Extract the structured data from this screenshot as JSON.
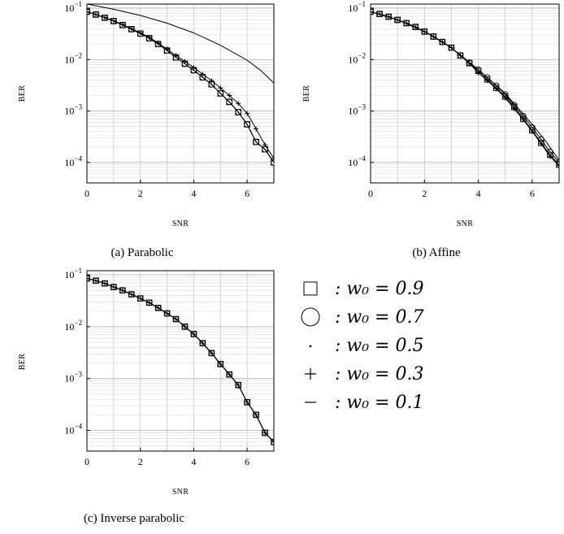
{
  "chart_data": [
    {
      "type": "line",
      "caption": "(a) Parabolic",
      "xlabel": "SNR",
      "ylabel": "BER",
      "xlim": [
        0,
        7
      ],
      "ylim": [
        4e-05,
        0.12
      ],
      "yscale": "log",
      "grid": true,
      "xticks": [
        "0",
        "2",
        "4",
        "6"
      ],
      "series": [
        {
          "name": "w0 = 0.9",
          "marker": "square",
          "x": [
            0,
            0.333,
            0.667,
            1,
            1.333,
            1.667,
            2,
            2.333,
            2.667,
            3,
            3.333,
            3.667,
            4,
            4.333,
            4.667,
            5,
            5.333,
            5.667,
            6,
            6.333,
            6.667,
            7
          ],
          "y": [
            0.085,
            0.075,
            0.065,
            0.056,
            0.047,
            0.039,
            0.032,
            0.026,
            0.02,
            0.015,
            0.011,
            0.0083,
            0.0062,
            0.0045,
            0.0033,
            0.0022,
            0.0015,
            0.00095,
            0.00055,
            0.00025,
            0.00018,
            0.0001
          ]
        },
        {
          "name": "w0 = 0.7",
          "marker": "circle",
          "x": [
            0,
            0.333,
            0.667,
            1,
            1.333,
            1.667,
            2,
            2.333,
            2.667,
            3,
            3.333,
            3.667,
            4,
            4.333,
            4.667,
            5,
            5.333,
            5.667,
            6,
            6.333,
            6.667,
            7
          ],
          "y": [
            0.085,
            0.075,
            0.065,
            0.056,
            0.047,
            0.039,
            0.032,
            0.026,
            0.02,
            0.015,
            0.011,
            0.0083,
            0.0062,
            0.0045,
            0.0033,
            0.0022,
            0.0015,
            0.00095,
            0.00055,
            0.00025,
            0.00018,
            0.0001
          ]
        },
        {
          "name": "w0 = 0.5",
          "marker": "dot",
          "x": [
            0,
            0.333,
            0.667,
            1,
            1.333,
            1.667,
            2,
            2.333,
            2.667,
            3,
            3.333,
            3.667,
            4,
            4.333,
            4.667,
            5,
            5.333,
            5.667,
            6,
            6.333,
            6.667,
            7
          ],
          "y": [
            0.085,
            0.075,
            0.065,
            0.056,
            0.047,
            0.039,
            0.032,
            0.026,
            0.02,
            0.015,
            0.011,
            0.0083,
            0.0062,
            0.0045,
            0.0033,
            0.0022,
            0.0015,
            0.00095,
            0.00055,
            0.00025,
            0.00018,
            0.0001
          ]
        },
        {
          "name": "w0 = 0.3",
          "marker": "plus",
          "x": [
            0,
            0.333,
            0.667,
            1,
            1.333,
            1.667,
            2,
            2.333,
            2.667,
            3,
            3.333,
            3.667,
            4,
            4.333,
            4.667,
            5,
            5.333,
            5.667,
            6,
            6.333,
            6.667,
            7
          ],
          "y": [
            0.085,
            0.075,
            0.066,
            0.057,
            0.048,
            0.04,
            0.033,
            0.027,
            0.021,
            0.016,
            0.012,
            0.0092,
            0.007,
            0.0052,
            0.0039,
            0.0028,
            0.002,
            0.0014,
            0.0009,
            0.00045,
            0.00022,
            0.00012
          ]
        },
        {
          "name": "w0 = 0.1",
          "marker": "none",
          "x": [
            0,
            1,
            2,
            3,
            4,
            5,
            6,
            6.5,
            7
          ],
          "y": [
            0.12,
            0.095,
            0.072,
            0.051,
            0.033,
            0.019,
            0.0097,
            0.0062,
            0.0035
          ]
        }
      ]
    },
    {
      "type": "line",
      "caption": "(b) Affine",
      "xlabel": "SNR",
      "ylabel": "BER",
      "xlim": [
        0,
        7
      ],
      "ylim": [
        4e-05,
        0.12
      ],
      "yscale": "log",
      "grid": true,
      "xticks": [
        "0",
        "2",
        "4",
        "6"
      ],
      "series": [
        {
          "name": "w0 = 0.9",
          "marker": "square",
          "x": [
            0,
            0.333,
            0.667,
            1,
            1.333,
            1.667,
            2,
            2.333,
            2.667,
            3,
            3.333,
            3.667,
            4,
            4.333,
            4.667,
            5,
            5.333,
            5.667,
            6,
            6.333,
            6.667,
            7
          ],
          "y": [
            0.085,
            0.077,
            0.068,
            0.059,
            0.051,
            0.043,
            0.035,
            0.028,
            0.022,
            0.017,
            0.012,
            0.0085,
            0.006,
            0.0041,
            0.0028,
            0.0019,
            0.0012,
            0.0007,
            0.00042,
            0.00024,
            0.00014,
            9e-05
          ]
        },
        {
          "name": "w0 = 0.7",
          "marker": "circle",
          "x": [
            0,
            0.333,
            0.667,
            1,
            1.333,
            1.667,
            2,
            2.333,
            2.667,
            3,
            3.333,
            3.667,
            4,
            4.333,
            4.667,
            5,
            5.333,
            5.667,
            6,
            6.333,
            6.667,
            7
          ],
          "y": [
            0.085,
            0.077,
            0.068,
            0.059,
            0.051,
            0.043,
            0.035,
            0.028,
            0.022,
            0.017,
            0.012,
            0.0087,
            0.0064,
            0.0045,
            0.0031,
            0.0021,
            0.0013,
            0.0008,
            0.00048,
            0.00028,
            0.00016,
            0.0001
          ]
        },
        {
          "name": "w0 = 0.5",
          "marker": "dot",
          "x": [
            0,
            0.333,
            0.667,
            1,
            1.333,
            1.667,
            2,
            2.333,
            2.667,
            3,
            3.333,
            3.667,
            4,
            4.333,
            4.667,
            5,
            5.333,
            5.667,
            6,
            6.333,
            6.667,
            7
          ],
          "y": [
            0.085,
            0.077,
            0.068,
            0.059,
            0.051,
            0.043,
            0.035,
            0.028,
            0.022,
            0.017,
            0.012,
            0.0085,
            0.006,
            0.0041,
            0.0028,
            0.0019,
            0.0012,
            0.0007,
            0.00042,
            0.00024,
            0.00014,
            9e-05
          ]
        },
        {
          "name": "w0 = 0.3",
          "marker": "plus",
          "x": [
            0,
            0.333,
            0.667,
            1,
            1.333,
            1.667,
            2,
            2.333,
            2.667,
            3,
            3.333,
            3.667,
            4,
            4.333,
            4.667,
            5,
            5.333,
            5.667,
            6,
            6.333,
            6.667,
            7
          ],
          "y": [
            0.085,
            0.077,
            0.068,
            0.059,
            0.051,
            0.043,
            0.035,
            0.028,
            0.022,
            0.017,
            0.012,
            0.0085,
            0.0055,
            0.0039,
            0.0027,
            0.0018,
            0.0011,
            0.00068,
            0.0004,
            0.00023,
            0.00013,
            8.5e-05
          ]
        },
        {
          "name": "w0 = 0.1",
          "marker": "none",
          "x": [
            0,
            1,
            2,
            3,
            4,
            5,
            6,
            6.5,
            7
          ],
          "y": [
            0.085,
            0.059,
            0.035,
            0.017,
            0.0064,
            0.0022,
            0.00055,
            0.00026,
            0.00011
          ]
        }
      ]
    },
    {
      "type": "line",
      "caption": "(c) Inverse parabolic",
      "xlabel": "SNR",
      "ylabel": "BER",
      "xlim": [
        0,
        7
      ],
      "ylim": [
        4e-05,
        0.12
      ],
      "yscale": "log",
      "grid": true,
      "xticks": [
        "0",
        "2",
        "4",
        "6"
      ],
      "series": [
        {
          "name": "w0 = 0.9",
          "marker": "square",
          "x": [
            0,
            0.333,
            0.667,
            1,
            1.333,
            1.667,
            2,
            2.333,
            2.667,
            3,
            3.333,
            3.667,
            4,
            4.333,
            4.667,
            5,
            5.333,
            5.667,
            6,
            6.333,
            6.667,
            7
          ],
          "y": [
            0.085,
            0.077,
            0.068,
            0.058,
            0.05,
            0.042,
            0.035,
            0.029,
            0.023,
            0.018,
            0.014,
            0.01,
            0.0072,
            0.0048,
            0.0031,
            0.0019,
            0.0012,
            0.00075,
            0.00035,
            0.0002,
            9e-05,
            6e-05
          ]
        },
        {
          "name": "w0 = 0.7",
          "marker": "circle",
          "x": [
            0,
            0.333,
            0.667,
            1,
            1.333,
            1.667,
            2,
            2.333,
            2.667,
            3,
            3.333,
            3.667,
            4,
            4.333,
            4.667,
            5,
            5.333,
            5.667,
            6,
            6.333,
            6.667,
            7
          ],
          "y": [
            0.085,
            0.077,
            0.068,
            0.058,
            0.05,
            0.042,
            0.035,
            0.029,
            0.023,
            0.018,
            0.014,
            0.01,
            0.0072,
            0.0048,
            0.0031,
            0.0019,
            0.0012,
            0.00075,
            0.00035,
            0.0002,
            9e-05,
            6e-05
          ]
        },
        {
          "name": "w0 = 0.5",
          "marker": "dot",
          "x": [
            0,
            0.333,
            0.667,
            1,
            1.333,
            1.667,
            2,
            2.333,
            2.667,
            3,
            3.333,
            3.667,
            4,
            4.333,
            4.667,
            5,
            5.333,
            5.667,
            6,
            6.333,
            6.667,
            7
          ],
          "y": [
            0.085,
            0.077,
            0.068,
            0.058,
            0.05,
            0.042,
            0.035,
            0.029,
            0.023,
            0.018,
            0.014,
            0.01,
            0.0072,
            0.0048,
            0.0031,
            0.0019,
            0.0012,
            0.00075,
            0.00035,
            0.0002,
            9e-05,
            6e-05
          ]
        },
        {
          "name": "w0 = 0.3",
          "marker": "plus",
          "x": [
            0,
            0.333,
            0.667,
            1,
            1.333,
            1.667,
            2,
            2.333,
            2.667,
            3,
            3.333,
            3.667,
            4,
            4.333,
            4.667,
            5,
            5.333,
            5.667,
            6,
            6.333,
            6.667,
            7
          ],
          "y": [
            0.085,
            0.077,
            0.068,
            0.058,
            0.05,
            0.042,
            0.035,
            0.029,
            0.023,
            0.018,
            0.014,
            0.01,
            0.0072,
            0.0048,
            0.0031,
            0.0019,
            0.0012,
            0.00075,
            0.00035,
            0.0002,
            9e-05,
            6e-05
          ]
        },
        {
          "name": "w0 = 0.1",
          "marker": "none",
          "x": [
            0,
            0.333,
            0.667,
            1,
            1.333,
            1.667,
            2,
            2.333,
            2.667,
            3,
            3.333,
            3.667,
            4,
            4.333,
            4.667,
            5,
            5.333,
            5.667,
            6,
            6.333,
            6.667,
            7
          ],
          "y": [
            0.085,
            0.077,
            0.068,
            0.058,
            0.05,
            0.042,
            0.035,
            0.029,
            0.023,
            0.018,
            0.014,
            0.01,
            0.0072,
            0.0048,
            0.0031,
            0.0019,
            0.0012,
            0.00075,
            0.00035,
            0.0002,
            9e-05,
            6e-05
          ]
        }
      ]
    }
  ],
  "legend": {
    "items": [
      {
        "marker": "square",
        "text": ": w₀ = 0.9"
      },
      {
        "marker": "circle",
        "text": ": w₀ = 0.7"
      },
      {
        "marker": "dot",
        "text": ": w₀ = 0.5"
      },
      {
        "marker": "plus",
        "text": ": w₀ = 0.3"
      },
      {
        "marker": "dash",
        "text": ": w₀ = 0.1"
      }
    ]
  }
}
